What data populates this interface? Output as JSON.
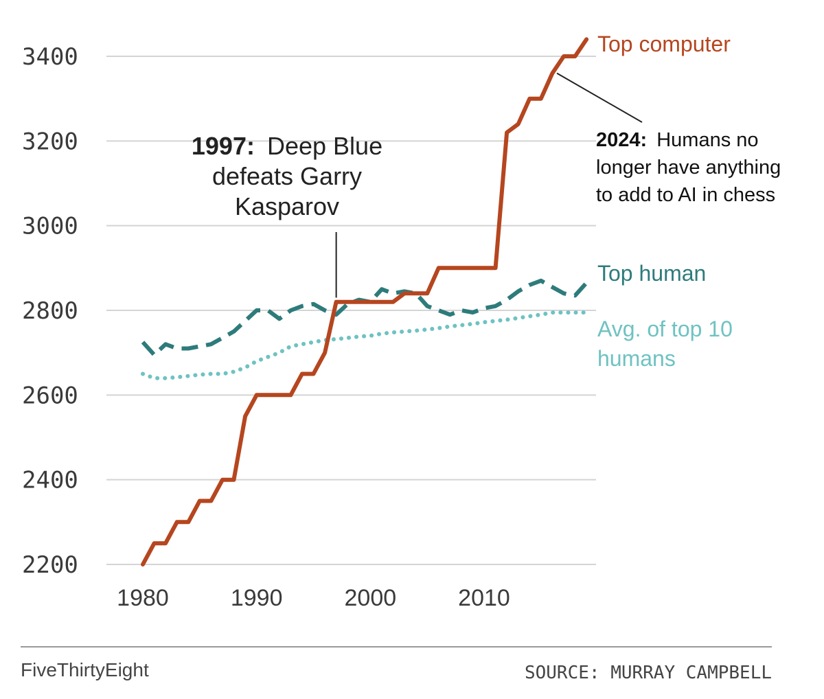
{
  "chart_data": {
    "type": "line",
    "title": "",
    "xlabel": "",
    "ylabel": "",
    "xlim": [
      1978,
      2020
    ],
    "ylim": [
      2200,
      3400
    ],
    "x_ticks": [
      "1980",
      "1990",
      "2000",
      "2010"
    ],
    "y_ticks": [
      "2200",
      "2400",
      "2600",
      "2800",
      "3000",
      "3200",
      "3400"
    ],
    "grid": true,
    "series": [
      {
        "name": "Top computer",
        "color": "#b5461f",
        "style": "solid",
        "x": [
          1980,
          1981,
          1982,
          1983,
          1984,
          1985,
          1986,
          1987,
          1988,
          1989,
          1990,
          1991,
          1992,
          1993,
          1994,
          1995,
          1996,
          1997,
          1998,
          1999,
          2000,
          2001,
          2002,
          2003,
          2004,
          2005,
          2006,
          2007,
          2008,
          2009,
          2010,
          2011,
          2012,
          2013,
          2014,
          2015,
          2016,
          2017,
          2018,
          2019
        ],
        "values": [
          2200,
          2250,
          2250,
          2300,
          2300,
          2350,
          2350,
          2400,
          2400,
          2550,
          2600,
          2600,
          2600,
          2600,
          2650,
          2650,
          2700,
          2820,
          2820,
          2820,
          2820,
          2820,
          2820,
          2840,
          2840,
          2840,
          2900,
          2900,
          2900,
          2900,
          2900,
          2900,
          3220,
          3240,
          3300,
          3300,
          3360,
          3400,
          3400,
          3440
        ]
      },
      {
        "name": "Top human",
        "color": "#2e7b7b",
        "style": "dashed",
        "x": [
          1980,
          1981,
          1982,
          1983,
          1984,
          1985,
          1986,
          1987,
          1988,
          1989,
          1990,
          1991,
          1992,
          1993,
          1994,
          1995,
          1996,
          1997,
          1998,
          1999,
          2000,
          2001,
          2002,
          2003,
          2004,
          2005,
          2006,
          2007,
          2008,
          2009,
          2010,
          2011,
          2012,
          2013,
          2014,
          2015,
          2016,
          2017,
          2018,
          2019
        ],
        "values": [
          2725,
          2695,
          2720,
          2710,
          2710,
          2715,
          2720,
          2735,
          2750,
          2775,
          2800,
          2800,
          2780,
          2800,
          2810,
          2815,
          2800,
          2790,
          2815,
          2825,
          2820,
          2850,
          2840,
          2845,
          2840,
          2810,
          2800,
          2790,
          2800,
          2795,
          2805,
          2810,
          2825,
          2845,
          2860,
          2870,
          2855,
          2840,
          2835,
          2865
        ]
      },
      {
        "name": "Avg. of top 10 humans",
        "color": "#6fc2c2",
        "style": "dotted",
        "x": [
          1980,
          1981,
          1982,
          1983,
          1984,
          1985,
          1986,
          1987,
          1988,
          1989,
          1990,
          1991,
          1992,
          1993,
          1994,
          1995,
          1996,
          1997,
          1998,
          1999,
          2000,
          2001,
          2002,
          2003,
          2004,
          2005,
          2006,
          2007,
          2008,
          2009,
          2010,
          2011,
          2012,
          2013,
          2014,
          2015,
          2016,
          2017,
          2018,
          2019
        ],
        "values": [
          2650,
          2640,
          2640,
          2642,
          2645,
          2648,
          2650,
          2650,
          2655,
          2665,
          2680,
          2690,
          2700,
          2715,
          2720,
          2725,
          2730,
          2732,
          2735,
          2738,
          2740,
          2745,
          2748,
          2750,
          2752,
          2755,
          2758,
          2762,
          2765,
          2768,
          2772,
          2775,
          2778,
          2782,
          2786,
          2790,
          2795,
          2795,
          2795,
          2795
        ]
      }
    ],
    "annotations": [
      {
        "id": "deep_blue",
        "year_label": "1997:",
        "text_lines": [
          "Deep Blue",
          "defeats Garry",
          "Kasparov"
        ],
        "point": {
          "x": 1997,
          "y": 2830
        }
      },
      {
        "id": "humans_2024",
        "year_label": "2024:",
        "text_lines": [
          "Humans no",
          "longer have anything",
          "to add to AI in chess"
        ],
        "point": {
          "x": 2016.4,
          "y": 3360
        }
      }
    ],
    "series_labels": {
      "top_computer": "Top computer",
      "top_human": "Top human",
      "avg_line1": "Avg. of top 10",
      "avg_line2": "humans"
    }
  },
  "footer": {
    "brand": "FiveThirtyEight",
    "source": "SOURCE: MURRAY CAMPBELL"
  }
}
